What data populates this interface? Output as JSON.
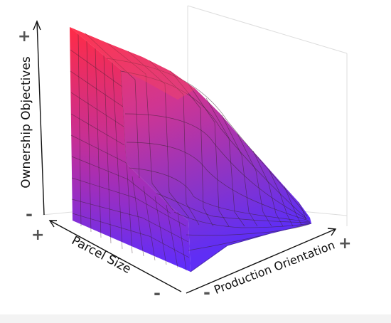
{
  "axes": {
    "vertical": {
      "label": "Ownership Objectives",
      "min_sign": "-",
      "max_sign": "+"
    },
    "depth": {
      "label": "Parcel Size",
      "near_sign": "-",
      "far_sign": "+"
    },
    "horizontal": {
      "label": "Production Orientation",
      "min_sign": "-",
      "max_sign": "+"
    }
  },
  "colors": {
    "surface_top": "#ff2d4a",
    "surface_mid": "#c02e9a",
    "surface_bottom": "#5a2cff",
    "gridline": "#333333",
    "axis": "#111111"
  }
}
